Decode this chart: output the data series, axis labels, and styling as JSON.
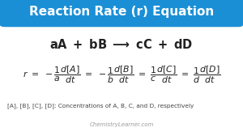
{
  "title": "Reaction Rate (r) Equation",
  "title_bg_color": "#1b8fd6",
  "title_text_color": "#ffffff",
  "bg_color": "#ffffff",
  "footnote": "[A], [B], [C], [D]: Concentrations of A, B, C, and D, respectively",
  "watermark": "ChemistryLearner.com",
  "text_color": "#222222",
  "footnote_color": "#444444",
  "watermark_color": "#999999",
  "title_fontsize": 11.0,
  "reaction_fontsize": 10.5,
  "rate_fontsize": 7.8,
  "footnote_fontsize": 5.3,
  "watermark_fontsize": 5.0
}
